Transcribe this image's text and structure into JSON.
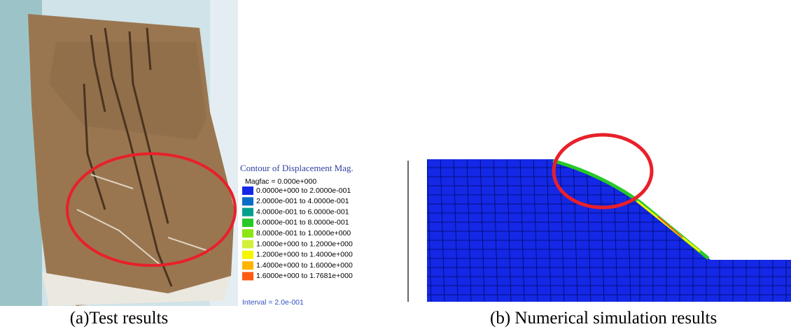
{
  "panels": [
    {
      "caption": "(a)Test results"
    },
    {
      "caption": "(b) Numerical simulation results"
    }
  ],
  "legend": {
    "title": "Contour of Displacement Mag.",
    "magfac": "Magfac = 0.000e+000",
    "entries": [
      {
        "label": "0.0000e+000 to 2.0000e-001",
        "color": "#1428e6"
      },
      {
        "label": "2.0000e-001 to 4.0000e-001",
        "color": "#0a6ec8"
      },
      {
        "label": "4.0000e-001 to 6.0000e-001",
        "color": "#04a08c"
      },
      {
        "label": "6.0000e-001 to 8.0000e-001",
        "color": "#28c828"
      },
      {
        "label": "8.0000e-001 to 1.0000e+000",
        "color": "#8ce614"
      },
      {
        "label": "1.0000e+000 to 1.2000e+000",
        "color": "#d2f03c"
      },
      {
        "label": "1.2000e+000 to 1.4000e+000",
        "color": "#f5f500"
      },
      {
        "label": "1.4000e+000 to 1.6000e+000",
        "color": "#ffb400"
      },
      {
        "label": "1.6000e+000 to 1.7681e+000",
        "color": "#ff5a14"
      }
    ],
    "interval": "Interval = 2.0e-001"
  }
}
